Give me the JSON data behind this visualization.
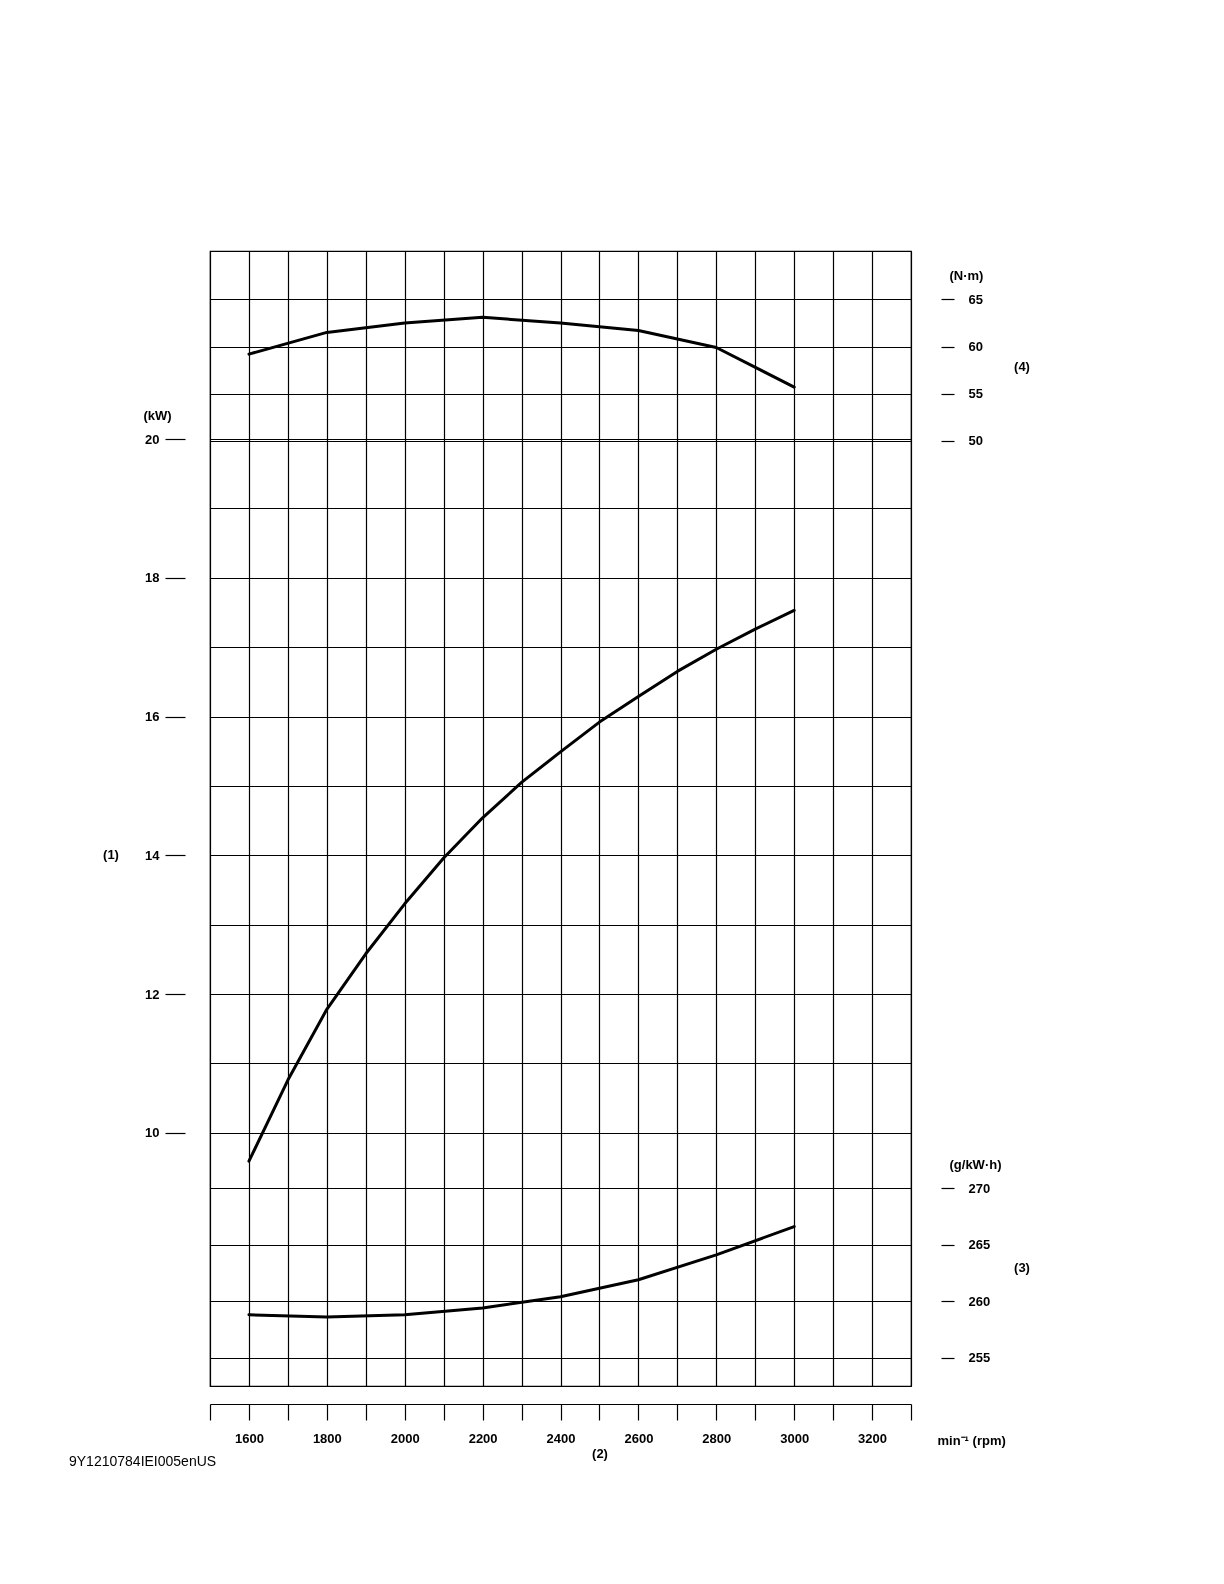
{
  "chart_data": {
    "type": "line",
    "xlabel": "min⁻¹ (rpm)",
    "ylabel": "(kW)",
    "y2label": "(N·m)",
    "y3label": "(g/kW·h)",
    "annotations": [
      "(1)",
      "(2)",
      "(3)",
      "(4)",
      "9Y1210784IEI005enUS"
    ],
    "xlim": [
      1500,
      3300
    ],
    "xticks": [
      {
        "value": 1500,
        "label": null
      },
      1600,
      {
        "value": 1700,
        "label": null
      },
      1800,
      {
        "value": 1900,
        "label": null
      },
      2000,
      {
        "value": 2100,
        "label": null
      },
      2200,
      {
        "value": 2300,
        "label": null
      },
      2400,
      {
        "value": 2500,
        "label": null
      },
      2600,
      {
        "value": 2700,
        "label": null
      },
      2800,
      {
        "value": 2900,
        "label": null
      },
      3000,
      {
        "value": 3100,
        "label": null
      },
      3200,
      {
        "value": 3300,
        "label": null
      }
    ],
    "ylim": [
      6.35,
      22.71
    ],
    "yticks": [
      10,
      {
        "value": 11,
        "label": null
      },
      12,
      {
        "value": 13,
        "label": null
      },
      14,
      {
        "value": 15,
        "label": null
      },
      16,
      {
        "value": 17,
        "label": null
      },
      18,
      {
        "value": 19,
        "label": null
      },
      20
    ],
    "y2lim": [
      -50.3,
      70.14
    ],
    "y2ticks": [
      50,
      55,
      60,
      65
    ],
    "y3lim": [
      252.5,
      352.9
    ],
    "y3ticks": [
      255,
      260,
      265,
      270
    ],
    "grid": true,
    "x": [
      1600,
      1700,
      1800,
      1900,
      2000,
      2100,
      2200,
      2300,
      2400,
      2500,
      2600,
      2700,
      2800,
      2900,
      3000
    ],
    "series": [
      {
        "color": "#000000",
        "values": [
          9.59,
          10.76,
          11.78,
          12.58,
          13.3,
          13.96,
          14.54,
          15.05,
          15.49,
          15.92,
          16.29,
          16.65,
          16.97,
          17.26,
          17.53
        ]
      },
      {
        "color": "#000000",
        "axis": "y2",
        "x": [
          1600,
          1800,
          2000,
          2200,
          2400,
          2600,
          2800,
          3000
        ],
        "values": [
          59.2,
          61.5,
          62.5,
          63.1,
          62.5,
          61.7,
          59.9,
          55.7
        ]
      },
      {
        "color": "#000000",
        "axis": "y3",
        "x": [
          1600,
          1800,
          2000,
          2200,
          2400,
          2600,
          2800,
          3000
        ],
        "values": [
          258.8,
          258.6,
          258.8,
          259.4,
          260.4,
          261.9,
          264.1,
          266.6
        ]
      }
    ]
  }
}
